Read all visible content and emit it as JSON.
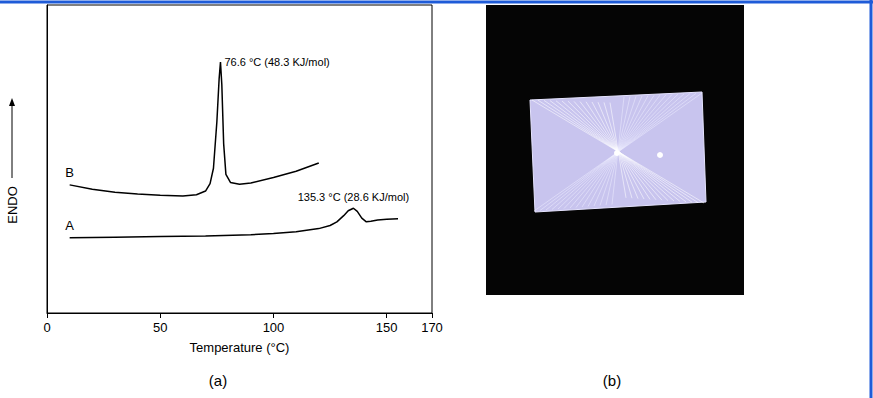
{
  "chart_data": {
    "type": "line",
    "x_label": "Temperature (°C)",
    "y_label": "ENDO",
    "xlim": [
      0,
      170
    ],
    "xticks": [
      0,
      50,
      100,
      150
    ],
    "ylim": [
      0,
      100
    ],
    "tick_labels": "x",
    "grid": false,
    "series": [
      {
        "name": "A",
        "color": "#000000",
        "x": [
          10,
          30,
          50,
          70,
          90,
          100,
          110,
          120,
          125,
          128,
          131,
          133,
          135.3,
          137,
          139,
          141,
          143,
          146,
          150,
          155
        ],
        "values": [
          24.4,
          24.6,
          24.8,
          25.0,
          25.4,
          25.8,
          26.4,
          27.4,
          28.4,
          29.6,
          31.6,
          33.2,
          34.0,
          33.0,
          30.8,
          29.6,
          29.8,
          30.2,
          30.4,
          30.6
        ],
        "annotation": "135.3 °C (28.6 KJ/mol)"
      },
      {
        "name": "B",
        "color": "#000000",
        "x": [
          10,
          20,
          30,
          40,
          50,
          60,
          66,
          70,
          72,
          73.5,
          75,
          76,
          76.6,
          77.2,
          78,
          79,
          81,
          85,
          90,
          100,
          110,
          120
        ],
        "values": [
          41.6,
          40.2,
          39.2,
          38.6,
          38.2,
          38.0,
          38.4,
          39.6,
          42.0,
          47.0,
          62.0,
          76.0,
          81.5,
          74.0,
          55.0,
          45.0,
          42.4,
          41.8,
          42.2,
          44.0,
          46.0,
          48.7
        ],
        "annotation": "76.6 °C (48.3 KJ/mol)"
      }
    ]
  },
  "panel_labels": [
    "(a)",
    "(b)"
  ]
}
